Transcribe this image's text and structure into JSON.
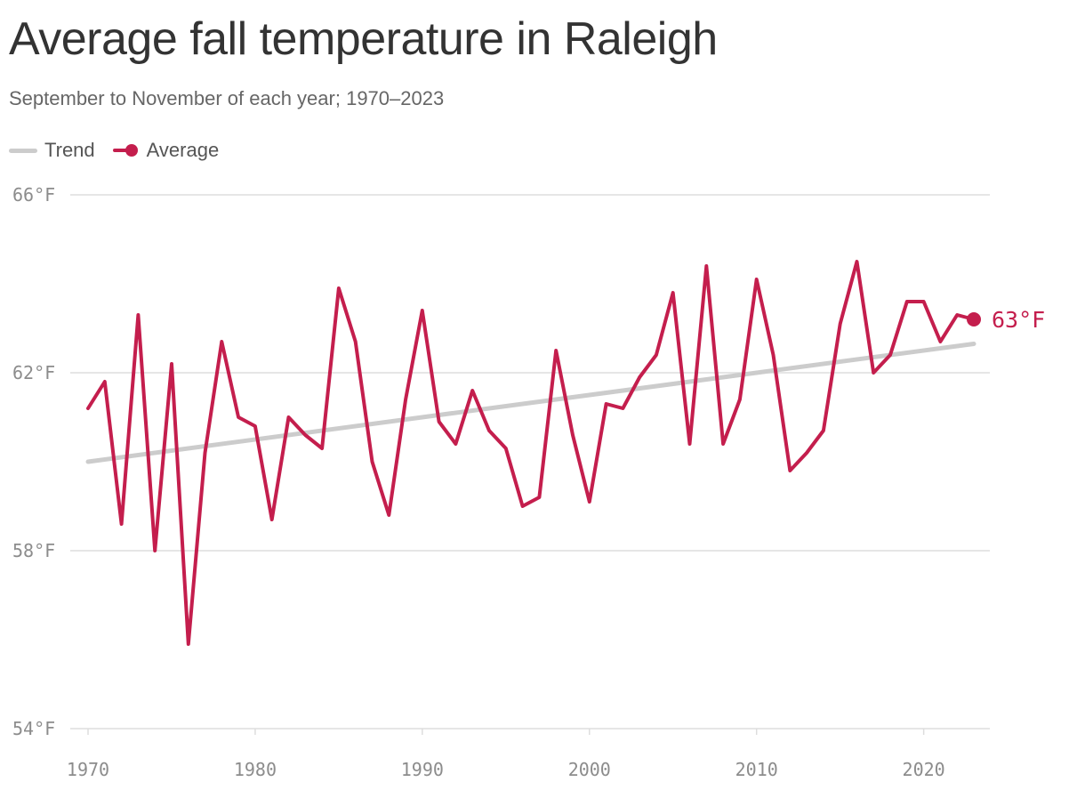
{
  "title": "Average fall temperature in Raleigh",
  "subtitle": "September to November of each year; 1970–2023",
  "legend": {
    "trend": "Trend",
    "average": "Average"
  },
  "colors": {
    "average": "#c41e4d",
    "trend": "#cccccc",
    "grid": "#dddddd",
    "tick": "#8c8c8c"
  },
  "chart_data": {
    "type": "line",
    "title": "Average fall temperature in Raleigh",
    "subtitle": "September to November of each year; 1970–2023",
    "xlabel": "",
    "ylabel": "",
    "xlim": [
      1970,
      2023
    ],
    "ylim": [
      54,
      66
    ],
    "grid": true,
    "legend_position": "top-left",
    "y_ticks": [
      {
        "value": 66,
        "label": "66°F"
      },
      {
        "value": 62,
        "label": "62°F"
      },
      {
        "value": 58,
        "label": "58°F"
      },
      {
        "value": 54,
        "label": "54°F"
      }
    ],
    "x_ticks": [
      {
        "value": 1970,
        "label": "1970"
      },
      {
        "value": 1980,
        "label": "1980"
      },
      {
        "value": 1990,
        "label": "1990"
      },
      {
        "value": 2000,
        "label": "2000"
      },
      {
        "value": 2010,
        "label": "2010"
      },
      {
        "value": 2020,
        "label": "2020"
      }
    ],
    "x": [
      1970,
      1971,
      1972,
      1973,
      1974,
      1975,
      1976,
      1977,
      1978,
      1979,
      1980,
      1981,
      1982,
      1983,
      1984,
      1985,
      1986,
      1987,
      1988,
      1989,
      1990,
      1991,
      1992,
      1993,
      1994,
      1995,
      1996,
      1997,
      1998,
      1999,
      2000,
      2001,
      2002,
      2003,
      2004,
      2005,
      2006,
      2007,
      2008,
      2009,
      2010,
      2011,
      2012,
      2013,
      2014,
      2015,
      2016,
      2017,
      2018,
      2019,
      2020,
      2021,
      2022,
      2023
    ],
    "series": [
      {
        "name": "Average",
        "values": [
          61.2,
          61.8,
          58.6,
          63.3,
          58.0,
          62.2,
          55.9,
          60.2,
          62.7,
          61.0,
          60.8,
          58.7,
          61.0,
          60.6,
          60.3,
          63.9,
          62.7,
          60.0,
          58.8,
          61.4,
          63.4,
          60.9,
          60.4,
          61.6,
          60.7,
          60.3,
          59.0,
          59.2,
          62.5,
          60.6,
          59.1,
          61.3,
          61.2,
          61.9,
          62.4,
          63.8,
          60.4,
          64.4,
          60.4,
          61.4,
          64.1,
          62.4,
          59.8,
          60.2,
          60.7,
          63.1,
          64.5,
          62.0,
          62.4,
          63.6,
          63.6,
          62.7,
          63.3,
          63.2
        ],
        "end_label": "63°F"
      },
      {
        "name": "Trend",
        "x": [
          1970,
          2023
        ],
        "values": [
          60.0,
          62.65
        ]
      }
    ]
  }
}
